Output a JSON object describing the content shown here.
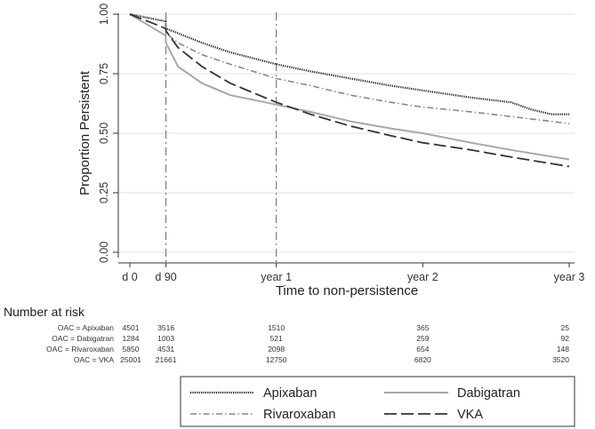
{
  "chart_data": {
    "type": "line",
    "ylabel": "Proportion Persistent",
    "xlabel": "Time to non-persistence",
    "ylim": [
      0,
      1
    ],
    "xlim": [
      0,
      1095
    ],
    "y_ticks": [
      {
        "value": 0.0,
        "label": "0.00"
      },
      {
        "value": 0.25,
        "label": "0.25"
      },
      {
        "value": 0.5,
        "label": "0.50"
      },
      {
        "value": 0.75,
        "label": "0.75"
      },
      {
        "value": 1.0,
        "label": "1.00"
      }
    ],
    "x_ticks": [
      {
        "value": 0,
        "label": "d 0"
      },
      {
        "value": 90,
        "label": "d 90"
      },
      {
        "value": 365,
        "label": "year 1"
      },
      {
        "value": 730,
        "label": "year 2"
      },
      {
        "value": 1095,
        "label": "year 3"
      }
    ],
    "reference_lines_x": [
      90,
      365
    ],
    "grid": "horizontal",
    "legend_position": "bottom",
    "series": [
      {
        "name": "Apixaban",
        "style": "dotted",
        "color": "#222222",
        "x": [
          0,
          30,
          60,
          89,
          90,
          120,
          180,
          250,
          365,
          450,
          550,
          650,
          730,
          850,
          950,
          1000,
          1050,
          1095
        ],
        "y": [
          1.0,
          0.99,
          0.98,
          0.97,
          0.94,
          0.92,
          0.88,
          0.84,
          0.79,
          0.76,
          0.73,
          0.7,
          0.68,
          0.65,
          0.63,
          0.6,
          0.58,
          0.58
        ]
      },
      {
        "name": "Rivaroxaban",
        "style": "dashdot",
        "color": "#888888",
        "x": [
          0,
          30,
          60,
          89,
          90,
          120,
          180,
          250,
          365,
          450,
          550,
          650,
          730,
          850,
          950,
          1000,
          1050,
          1095
        ],
        "y": [
          1.0,
          0.99,
          0.98,
          0.97,
          0.92,
          0.88,
          0.83,
          0.79,
          0.73,
          0.7,
          0.66,
          0.63,
          0.61,
          0.59,
          0.57,
          0.56,
          0.55,
          0.54
        ]
      },
      {
        "name": "Dabigatran",
        "style": "solid",
        "color": "#a8a8a8",
        "x": [
          0,
          30,
          60,
          89,
          90,
          120,
          180,
          250,
          365,
          450,
          550,
          650,
          730,
          850,
          950,
          1095
        ],
        "y": [
          1.0,
          0.97,
          0.94,
          0.91,
          0.88,
          0.78,
          0.71,
          0.66,
          0.62,
          0.59,
          0.55,
          0.52,
          0.5,
          0.46,
          0.43,
          0.39
        ]
      },
      {
        "name": "VKA",
        "style": "longdash",
        "color": "#333333",
        "x": [
          0,
          30,
          60,
          89,
          90,
          120,
          180,
          250,
          365,
          450,
          550,
          650,
          730,
          850,
          950,
          1095
        ],
        "y": [
          1.0,
          0.98,
          0.96,
          0.94,
          0.93,
          0.86,
          0.78,
          0.71,
          0.63,
          0.58,
          0.53,
          0.49,
          0.46,
          0.43,
          0.4,
          0.36
        ]
      }
    ],
    "risk_table": {
      "title": "Number at risk",
      "rows": [
        {
          "label": "OAC = Apixaban",
          "values": [
            "4501",
            "3516",
            "1510",
            "365",
            "25"
          ]
        },
        {
          "label": "OAC = Dabigatran",
          "values": [
            "1284",
            "1003",
            "521",
            "259",
            "92"
          ]
        },
        {
          "label": "OAC = Rivaroxaban",
          "values": [
            "5850",
            "4531",
            "2098",
            "654",
            "148"
          ]
        },
        {
          "label": "OAC = VKA",
          "values": [
            "25001",
            "21661",
            "12750",
            "6820",
            "3520"
          ]
        }
      ]
    }
  }
}
